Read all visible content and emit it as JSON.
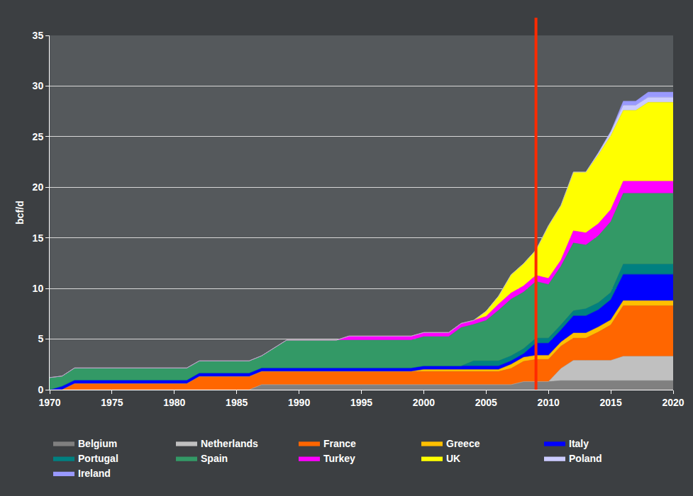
{
  "chart_data": {
    "type": "area",
    "stacked": true,
    "y_label": "bcf/d",
    "x": [
      1970,
      1971,
      1972,
      1981,
      1982,
      1986,
      1987,
      1988,
      1989,
      1993,
      1994,
      1999,
      2000,
      2002,
      2003,
      2004,
      2005,
      2006,
      2007,
      2008,
      2009,
      2010,
      2011,
      2012,
      2013,
      2014,
      2015,
      2016,
      2017,
      2018,
      2020
    ],
    "xlim": [
      1970,
      2020
    ],
    "xticks": [
      1970,
      1975,
      1980,
      1985,
      1990,
      1995,
      2000,
      2005,
      2010,
      2015,
      2020
    ],
    "ylim": [
      0,
      35
    ],
    "yticks": [
      0,
      5,
      10,
      15,
      20,
      25,
      30,
      35
    ],
    "grid": true,
    "legend": "bottom",
    "vertical_line": {
      "x": 2009,
      "color": "#ff2a00"
    },
    "series": [
      {
        "name": "Belgium",
        "color": "#808080",
        "values": [
          0,
          0,
          0,
          0,
          0,
          0,
          0.5,
          0.5,
          0.5,
          0.5,
          0.5,
          0.5,
          0.5,
          0.5,
          0.5,
          0.5,
          0.5,
          0.5,
          0.5,
          0.8,
          0.8,
          0.8,
          0.9,
          0.9,
          0.9,
          0.9,
          0.9,
          0.9,
          0.9,
          0.9,
          0.9
        ]
      },
      {
        "name": "Netherlands",
        "color": "#c0c0c0",
        "values": [
          0,
          0,
          0,
          0,
          0,
          0,
          0,
          0,
          0,
          0,
          0,
          0,
          0,
          0,
          0,
          0,
          0,
          0,
          0,
          0,
          0,
          0,
          1.2,
          2.0,
          2.0,
          2.0,
          2.0,
          2.4,
          2.4,
          2.4,
          2.4
        ]
      },
      {
        "name": "France",
        "color": "#ff6600",
        "values": [
          0,
          0,
          0.6,
          0.6,
          1.3,
          1.3,
          1.3,
          1.3,
          1.3,
          1.3,
          1.3,
          1.3,
          1.3,
          1.3,
          1.3,
          1.3,
          1.3,
          1.3,
          1.6,
          2.0,
          2.2,
          2.2,
          2.2,
          2.2,
          2.2,
          2.8,
          3.5,
          5.0,
          5.0,
          5.0,
          5.0
        ]
      },
      {
        "name": "Greece",
        "color": "#ffc000",
        "values": [
          0,
          0,
          0,
          0,
          0,
          0,
          0,
          0,
          0,
          0,
          0,
          0,
          0.2,
          0.2,
          0.2,
          0.2,
          0.2,
          0.2,
          0.4,
          0.4,
          0.4,
          0.4,
          0.4,
          0.5,
          0.5,
          0.5,
          0.5,
          0.5,
          0.5,
          0.5,
          0.5
        ]
      },
      {
        "name": "Italy",
        "color": "#0000ff",
        "values": [
          0,
          0.35,
          0.35,
          0.35,
          0.35,
          0.35,
          0.35,
          0.35,
          0.35,
          0.35,
          0.35,
          0.35,
          0.35,
          0.35,
          0.35,
          0.35,
          0.35,
          0.35,
          0.35,
          0.35,
          1.2,
          1.2,
          1.2,
          1.7,
          1.7,
          1.7,
          2.0,
          2.6,
          2.6,
          2.6,
          2.6
        ]
      },
      {
        "name": "Portugal",
        "color": "#008080",
        "values": [
          0,
          0,
          0,
          0,
          0,
          0,
          0,
          0,
          0,
          0,
          0,
          0,
          0,
          0,
          0,
          0.5,
          0.5,
          0.5,
          0.5,
          0.5,
          0.5,
          0.5,
          0.5,
          0.5,
          0.7,
          0.7,
          0.7,
          1.0,
          1.0,
          1.0,
          1.0
        ]
      },
      {
        "name": "Spain",
        "color": "#339966",
        "values": [
          1.2,
          1.0,
          1.2,
          1.2,
          1.2,
          1.2,
          1.2,
          2.0,
          2.75,
          2.75,
          2.75,
          2.75,
          2.9,
          2.9,
          3.8,
          3.6,
          4.0,
          5.0,
          5.6,
          5.6,
          5.6,
          5.3,
          5.8,
          6.7,
          6.3,
          6.6,
          7.0,
          7.0,
          7.0,
          7.0,
          7.0
        ]
      },
      {
        "name": "Turkey",
        "color": "#ff00ff",
        "values": [
          0,
          0,
          0,
          0,
          0,
          0,
          0,
          0,
          0,
          0,
          0.4,
          0.4,
          0.4,
          0.4,
          0.4,
          0.4,
          0.4,
          0.6,
          0.6,
          0.6,
          0.6,
          0.6,
          0.6,
          1.2,
          1.2,
          1.2,
          1.2,
          1.2,
          1.2,
          1.2,
          1.2
        ]
      },
      {
        "name": "UK",
        "color": "#ffff00",
        "values": [
          0,
          0,
          0,
          0,
          0,
          0,
          0,
          0,
          0,
          0,
          0,
          0,
          0,
          0,
          0,
          0,
          0.5,
          0.8,
          1.8,
          2.2,
          2.5,
          5.2,
          5.4,
          5.8,
          6.0,
          6.8,
          7.3,
          7.0,
          7.0,
          7.8,
          7.8
        ]
      },
      {
        "name": "Poland",
        "color": "#ccccff",
        "values": [
          0,
          0,
          0,
          0,
          0,
          0,
          0,
          0,
          0,
          0,
          0,
          0,
          0,
          0,
          0,
          0,
          0,
          0,
          0,
          0,
          0,
          0,
          0,
          0,
          0,
          0.2,
          0.4,
          0.5,
          0.5,
          0.5,
          0.5
        ]
      },
      {
        "name": "Ireland",
        "color": "#9999ff",
        "values": [
          0,
          0,
          0,
          0,
          0,
          0,
          0,
          0,
          0,
          0,
          0,
          0,
          0,
          0,
          0,
          0,
          0,
          0,
          0,
          0,
          0,
          0,
          0,
          0,
          0,
          0,
          0,
          0.4,
          0.4,
          0.5,
          0.5
        ]
      }
    ]
  }
}
